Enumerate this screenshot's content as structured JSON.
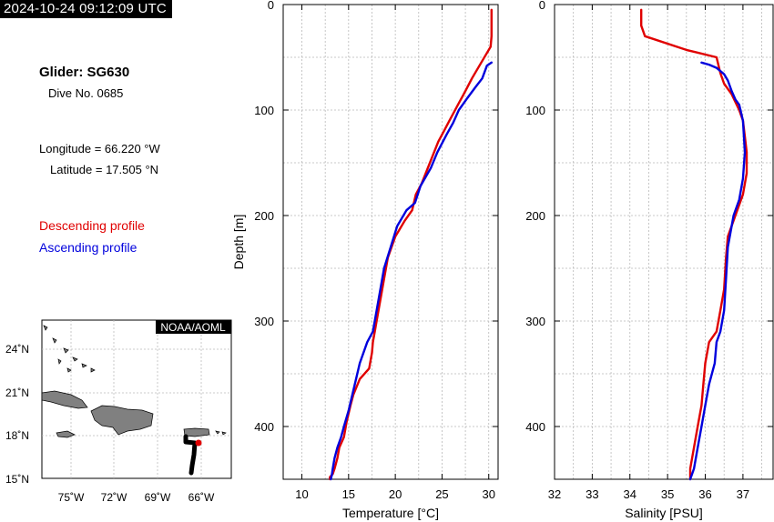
{
  "timestamp": "2024-10-24 09:12:09 UTC",
  "info": {
    "glider": "Glider: SG630",
    "dive": "Dive No. 0685",
    "longitude": "Longitude = 66.220 °W",
    "latitude": "Latitude = 17.505 °N"
  },
  "legend": {
    "descending": "Descending profile",
    "ascending": "Ascending profile"
  },
  "colors": {
    "descending": "#e00000",
    "ascending": "#0000dd",
    "land": "#808080",
    "track": "#000000"
  },
  "map": {
    "badge": "NOAA/AOML",
    "lat_ticks": [
      "24˚N",
      "21˚N",
      "18˚N",
      "15˚N"
    ],
    "lon_ticks": [
      "75˚W",
      "72˚W",
      "69˚W",
      "66˚W"
    ]
  },
  "chart_data": [
    {
      "type": "line",
      "title": "",
      "xlabel": "Temperature [°C]",
      "ylabel": "Depth [m]",
      "xlim": [
        8,
        31
      ],
      "ylim": [
        450,
        0
      ],
      "xticks": [
        10,
        15,
        20,
        25,
        30
      ],
      "yticks": [
        0,
        100,
        200,
        300,
        400
      ],
      "grid": true,
      "series": [
        {
          "name": "Descending profile",
          "x": [
            30.3,
            30.3,
            30.2,
            29.2,
            28.2,
            27.5,
            26.7,
            25.8,
            25.2,
            24.6,
            23.7,
            22.8,
            22.2,
            21.8,
            21.0,
            20.0,
            19.2,
            18.8,
            18.4,
            18.0,
            17.8,
            17.6,
            17.5,
            17.2,
            16.2,
            15.5,
            15.2,
            14.8,
            14.5,
            14.0,
            13.8,
            13.5,
            13.3,
            13.0,
            13.0
          ],
          "y": [
            5,
            30,
            40,
            55,
            70,
            82,
            95,
            110,
            120,
            130,
            150,
            170,
            180,
            195,
            205,
            220,
            240,
            260,
            280,
            300,
            310,
            320,
            330,
            345,
            355,
            370,
            380,
            395,
            410,
            420,
            430,
            440,
            445,
            448,
            450
          ]
        },
        {
          "name": "Ascending profile",
          "x": [
            30.3,
            29.8,
            29.3,
            28.6,
            27.6,
            26.8,
            26.2,
            25.5,
            24.5,
            23.8,
            22.7,
            22.1,
            21.2,
            20.2,
            19.5,
            18.8,
            18.4,
            18.0,
            17.6,
            17.0,
            16.2,
            15.8,
            15.4,
            15.0,
            14.5,
            14.2,
            13.8,
            13.5,
            13.3,
            13.2,
            13.1
          ],
          "y": [
            55,
            58,
            70,
            78,
            90,
            100,
            112,
            123,
            140,
            155,
            172,
            188,
            195,
            210,
            230,
            250,
            270,
            290,
            310,
            320,
            340,
            355,
            370,
            385,
            400,
            410,
            420,
            430,
            440,
            446,
            450
          ]
        }
      ]
    },
    {
      "type": "line",
      "title": "",
      "xlabel": "Salinity [PSU]",
      "ylabel": "",
      "xlim": [
        32,
        37.8
      ],
      "ylim": [
        450,
        0
      ],
      "xticks": [
        32,
        33,
        34,
        35,
        36,
        37
      ],
      "yticks": [
        0,
        100,
        200,
        300,
        400
      ],
      "grid": true,
      "series": [
        {
          "name": "Descending profile",
          "x": [
            34.3,
            34.3,
            34.4,
            35.5,
            36.3,
            36.4,
            36.5,
            36.7,
            36.9,
            37.0,
            37.05,
            37.1,
            37.1,
            37.0,
            36.8,
            36.6,
            36.55,
            36.5,
            36.4,
            36.3,
            36.1,
            36.0,
            35.95,
            35.9,
            35.8,
            35.7,
            35.6,
            35.6
          ],
          "y": [
            5,
            20,
            30,
            43,
            50,
            65,
            75,
            85,
            100,
            110,
            125,
            140,
            160,
            180,
            200,
            220,
            240,
            270,
            290,
            310,
            320,
            340,
            360,
            380,
            400,
            420,
            440,
            450
          ]
        },
        {
          "name": "Ascending profile",
          "x": [
            35.9,
            36.1,
            36.3,
            36.5,
            36.6,
            36.7,
            36.8,
            36.9,
            37.0,
            37.05,
            37.0,
            36.9,
            36.75,
            36.6,
            36.55,
            36.5,
            36.4,
            36.3,
            36.25,
            36.1,
            36.0,
            35.9,
            35.8,
            35.7,
            35.6
          ],
          "y": [
            55,
            57,
            60,
            66,
            72,
            82,
            90,
            95,
            110,
            140,
            165,
            185,
            200,
            230,
            260,
            290,
            310,
            320,
            340,
            360,
            380,
            400,
            420,
            440,
            450
          ]
        }
      ]
    }
  ]
}
